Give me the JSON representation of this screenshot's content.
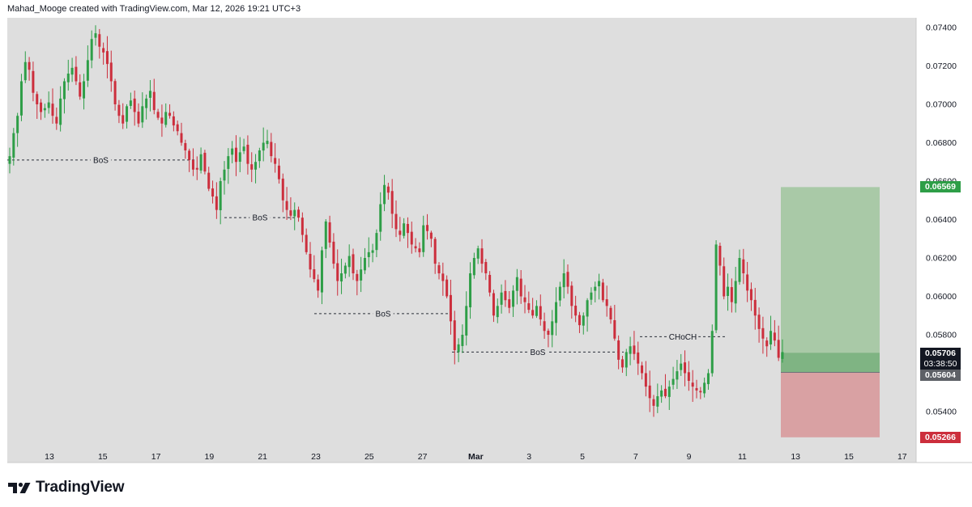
{
  "header": {
    "text": "Mahad_Mooge created with TradingView.com, Mar 12, 2026 19:21 UTC+3"
  },
  "branding": {
    "logo_text": "TradingView"
  },
  "colors": {
    "up": "#2e9e47",
    "down": "#cc2e3c",
    "background": "#dedede",
    "target_zone": "#a9c9a7",
    "stop_zone": "#d9a1a3",
    "target_tag": "#2e9e47",
    "stop_tag": "#cc2e3c",
    "current_tag": "#131722",
    "entry_tag": "#5d6066"
  },
  "chart_data": {
    "type": "candlestick",
    "symbol": "",
    "y_axis": {
      "range": [
        0.0525,
        0.0743
      ],
      "ticks": [
        "0.07400",
        "0.07200",
        "0.07000",
        "0.06800",
        "0.06600",
        "0.06400",
        "0.06200",
        "0.06000",
        "0.05800",
        "0.05400"
      ]
    },
    "x_axis": {
      "labels": [
        "13",
        "15",
        "17",
        "19",
        "21",
        "23",
        "25",
        "27",
        "Mar",
        "3",
        "5",
        "7",
        "9",
        "11",
        "13",
        "15",
        "17"
      ]
    },
    "price_tags": {
      "target": "0.06569",
      "current": "0.05706",
      "countdown": "03:38:50",
      "entry": "0.05604",
      "stop": "0.05266"
    },
    "position": {
      "type": "long",
      "entry": 0.05604,
      "target": 0.06569,
      "stop": 0.05266,
      "current": 0.05706
    },
    "annotations": [
      {
        "label": "BoS",
        "level": 0.0671
      },
      {
        "label": "BoS",
        "level": 0.0641
      },
      {
        "label": "BoS",
        "level": 0.0591
      },
      {
        "label": "BoS",
        "level": 0.0571
      },
      {
        "label": "CHoCH",
        "level": 0.0579
      }
    ],
    "close_path": [
      0.0673,
      0.0685,
      0.0694,
      0.0712,
      0.0722,
      0.0718,
      0.0706,
      0.07,
      0.0696,
      0.0698,
      0.0701,
      0.0694,
      0.069,
      0.0703,
      0.0712,
      0.0716,
      0.0719,
      0.0712,
      0.0704,
      0.0712,
      0.0723,
      0.0734,
      0.0737,
      0.073,
      0.0727,
      0.0721,
      0.0712,
      0.07,
      0.0694,
      0.069,
      0.0699,
      0.0702,
      0.0696,
      0.069,
      0.0699,
      0.0703,
      0.0707,
      0.0697,
      0.0693,
      0.069,
      0.0696,
      0.0694,
      0.0689,
      0.0686,
      0.068,
      0.0676,
      0.0671,
      0.0666,
      0.0666,
      0.0674,
      0.0665,
      0.0656,
      0.0652,
      0.0645,
      0.066,
      0.0666,
      0.0673,
      0.0677,
      0.067,
      0.0675,
      0.0678,
      0.0669,
      0.0666,
      0.067,
      0.0676,
      0.068,
      0.0681,
      0.0673,
      0.0669,
      0.0661,
      0.065,
      0.0645,
      0.0642,
      0.0645,
      0.0641,
      0.0632,
      0.0623,
      0.0614,
      0.0609,
      0.0603,
      0.0624,
      0.0639,
      0.0628,
      0.0617,
      0.0608,
      0.0612,
      0.0616,
      0.0621,
      0.0612,
      0.0608,
      0.0614,
      0.062,
      0.0623,
      0.0624,
      0.0633,
      0.0648,
      0.0658,
      0.0654,
      0.0643,
      0.0635,
      0.0632,
      0.0638,
      0.0633,
      0.0627,
      0.0625,
      0.0623,
      0.0637,
      0.0634,
      0.063,
      0.0617,
      0.0612,
      0.0608,
      0.06,
      0.0587,
      0.0572,
      0.0575,
      0.058,
      0.0595,
      0.0612,
      0.062,
      0.0625,
      0.0617,
      0.0612,
      0.0602,
      0.059,
      0.0595,
      0.0602,
      0.0598,
      0.0594,
      0.0603,
      0.061,
      0.06,
      0.0597,
      0.0593,
      0.059,
      0.0595,
      0.0588,
      0.0582,
      0.058,
      0.0587,
      0.0597,
      0.0605,
      0.0612,
      0.0605,
      0.0595,
      0.059,
      0.0585,
      0.059,
      0.0598,
      0.0602,
      0.0605,
      0.0608,
      0.0598,
      0.0595,
      0.0588,
      0.0578,
      0.0567,
      0.0563,
      0.0571,
      0.0574,
      0.057,
      0.0565,
      0.056,
      0.0553,
      0.0547,
      0.0543,
      0.0548,
      0.0551,
      0.0548,
      0.0553,
      0.0557,
      0.0561,
      0.0565,
      0.056,
      0.0556,
      0.0553,
      0.0551,
      0.055,
      0.0555,
      0.056,
      0.0582,
      0.0627,
      0.0616,
      0.06,
      0.0605,
      0.0597,
      0.0608,
      0.062,
      0.0612,
      0.0603,
      0.0598,
      0.059,
      0.0583,
      0.0578,
      0.0574,
      0.0582,
      0.0577,
      0.0568,
      0.0571
    ]
  }
}
